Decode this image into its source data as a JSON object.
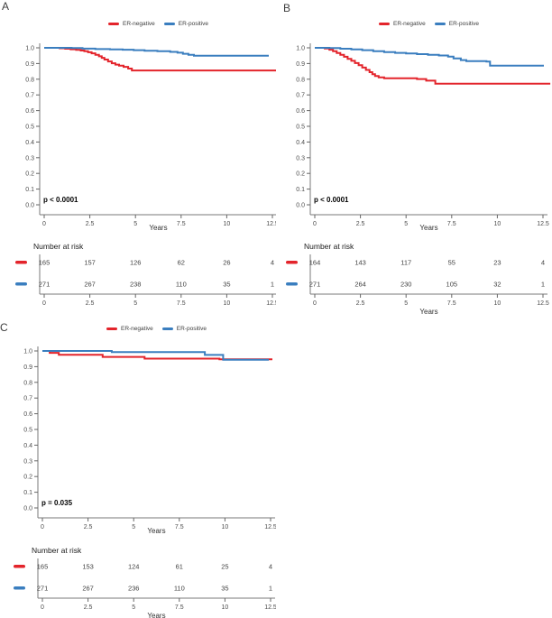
{
  "figure_title": "",
  "colors": {
    "er_negative": "#e3242b",
    "er_positive": "#3a7ebf",
    "axis_line": "#7a7a7a",
    "tick_mark": "#666666",
    "tick_label": "#4d4d4d",
    "risk_number": "#404040",
    "p_value_text": "#000000",
    "background": "#ffffff"
  },
  "strings": {
    "risk_title": "Number at risk",
    "x_axis_label": "Years"
  },
  "legend": [
    {
      "label": "ER-negative",
      "color_key": "er_negative"
    },
    {
      "label": "ER-positive",
      "color_key": "er_positive"
    }
  ],
  "axes": {
    "x_range": [
      0,
      12.5
    ],
    "y_range": [
      0,
      1
    ],
    "x_tick_values": [
      0,
      2.5,
      5,
      7.5,
      10,
      12.5
    ],
    "x_tick_labels": [
      "0",
      "2.5",
      "5",
      "7.5",
      "10",
      "12.5"
    ],
    "y_tick_values": [
      1.0,
      0.9,
      0.8,
      0.7,
      0.6,
      0.5,
      0.4,
      0.3,
      0.2,
      0.1,
      0.0
    ],
    "y_tick_labels": [
      "1.0",
      "0.9",
      "0.8",
      "0.7",
      "0.6",
      "0.5",
      "0.4",
      "0.3",
      "0.2",
      "0.1",
      "0.0"
    ]
  },
  "chart_data": [
    {
      "panel": "A",
      "type": "line",
      "subtype": "kaplan-meier-step",
      "p_value": "p < 0.0001",
      "show_years_under_plot": true,
      "show_years_under_risk": false,
      "series": [
        {
          "name": "ER-negative",
          "color_key": "er_negative",
          "points": [
            [
              0,
              1
            ],
            [
              0.85,
              0.997
            ],
            [
              1.15,
              0.994
            ],
            [
              1.45,
              0.991
            ],
            [
              1.75,
              0.987
            ],
            [
              2.0,
              0.983
            ],
            [
              2.2,
              0.978
            ],
            [
              2.4,
              0.972
            ],
            [
              2.6,
              0.965
            ],
            [
              2.8,
              0.956
            ],
            [
              3.0,
              0.946
            ],
            [
              3.15,
              0.936
            ],
            [
              3.3,
              0.925
            ],
            [
              3.5,
              0.913
            ],
            [
              3.7,
              0.902
            ],
            [
              3.9,
              0.893
            ],
            [
              4.1,
              0.886
            ],
            [
              4.35,
              0.879
            ],
            [
              4.6,
              0.868
            ],
            [
              4.8,
              0.856
            ],
            [
              12.75,
              0.856
            ]
          ]
        },
        {
          "name": "ER-positive",
          "color_key": "er_positive",
          "points": [
            [
              0,
              1
            ],
            [
              1.5,
              0.998
            ],
            [
              2.1,
              0.995
            ],
            [
              2.8,
              0.992
            ],
            [
              3.6,
              0.99
            ],
            [
              4.3,
              0.988
            ],
            [
              4.9,
              0.985
            ],
            [
              5.5,
              0.981
            ],
            [
              6.2,
              0.978
            ],
            [
              6.9,
              0.974
            ],
            [
              7.3,
              0.969
            ],
            [
              7.6,
              0.962
            ],
            [
              7.9,
              0.955
            ],
            [
              8.2,
              0.95
            ],
            [
              12.3,
              0.95
            ]
          ]
        }
      ],
      "number_at_risk": {
        "times": [
          0,
          2.5,
          5,
          7.5,
          10,
          12.5
        ],
        "rows": [
          {
            "name": "ER-negative",
            "color_key": "er_negative",
            "counts": [
              "165",
              "157",
              "126",
              "62",
              "26",
              "4"
            ]
          },
          {
            "name": "ER-positive",
            "color_key": "er_positive",
            "counts": [
              "271",
              "267",
              "238",
              "110",
              "35",
              "1"
            ]
          }
        ]
      }
    },
    {
      "panel": "B",
      "type": "line",
      "subtype": "kaplan-meier-step",
      "p_value": "p < 0.0001",
      "show_years_under_plot": true,
      "show_years_under_risk": true,
      "series": [
        {
          "name": "ER-negative",
          "color_key": "er_negative",
          "points": [
            [
              0,
              1
            ],
            [
              0.55,
              0.996
            ],
            [
              0.8,
              0.988
            ],
            [
              1.0,
              0.978
            ],
            [
              1.2,
              0.967
            ],
            [
              1.4,
              0.955
            ],
            [
              1.6,
              0.943
            ],
            [
              1.8,
              0.93
            ],
            [
              2.0,
              0.917
            ],
            [
              2.2,
              0.903
            ],
            [
              2.4,
              0.889
            ],
            [
              2.6,
              0.874
            ],
            [
              2.8,
              0.859
            ],
            [
              3.0,
              0.845
            ],
            [
              3.15,
              0.832
            ],
            [
              3.3,
              0.82
            ],
            [
              3.5,
              0.812
            ],
            [
              3.8,
              0.806
            ],
            [
              5.6,
              0.801
            ],
            [
              6.1,
              0.791
            ],
            [
              6.6,
              0.772
            ],
            [
              12.9,
              0.772
            ]
          ]
        },
        {
          "name": "ER-positive",
          "color_key": "er_positive",
          "points": [
            [
              0,
              1
            ],
            [
              0.8,
              0.998
            ],
            [
              1.4,
              0.994
            ],
            [
              2.0,
              0.99
            ],
            [
              2.6,
              0.985
            ],
            [
              3.2,
              0.979
            ],
            [
              3.8,
              0.973
            ],
            [
              4.4,
              0.968
            ],
            [
              5.0,
              0.964
            ],
            [
              5.6,
              0.96
            ],
            [
              6.2,
              0.956
            ],
            [
              6.8,
              0.951
            ],
            [
              7.3,
              0.944
            ],
            [
              7.6,
              0.932
            ],
            [
              8.0,
              0.922
            ],
            [
              8.3,
              0.915
            ],
            [
              9.4,
              0.912
            ],
            [
              9.6,
              0.886
            ],
            [
              12.55,
              0.886
            ]
          ]
        }
      ],
      "number_at_risk": {
        "times": [
          0,
          2.5,
          5,
          7.5,
          10,
          12.5
        ],
        "rows": [
          {
            "name": "ER-negative",
            "color_key": "er_negative",
            "counts": [
              "164",
              "143",
              "117",
              "55",
              "23",
              "4"
            ]
          },
          {
            "name": "ER-positive",
            "color_key": "er_positive",
            "counts": [
              "271",
              "264",
              "230",
              "105",
              "32",
              "1"
            ]
          }
        ]
      }
    },
    {
      "panel": "C",
      "type": "line",
      "subtype": "kaplan-meier-step",
      "p_value": "p = 0.035",
      "show_years_under_plot": true,
      "show_years_under_risk": true,
      "series": [
        {
          "name": "ER-negative",
          "color_key": "er_negative",
          "points": [
            [
              0,
              1
            ],
            [
              0.4,
              0.988
            ],
            [
              0.9,
              0.976
            ],
            [
              3.3,
              0.962
            ],
            [
              5.6,
              0.951
            ],
            [
              9.7,
              0.947
            ],
            [
              12.6,
              0.947
            ]
          ]
        },
        {
          "name": "ER-positive",
          "color_key": "er_positive",
          "points": [
            [
              0,
              1
            ],
            [
              3.8,
              0.993
            ],
            [
              8.9,
              0.975
            ],
            [
              9.9,
              0.944
            ],
            [
              12.4,
              0.944
            ]
          ]
        }
      ],
      "number_at_risk": {
        "times": [
          0,
          2.5,
          5,
          7.5,
          10,
          12.5
        ],
        "rows": [
          {
            "name": "ER-negative",
            "color_key": "er_negative",
            "counts": [
              "165",
              "153",
              "124",
              "61",
              "25",
              "4"
            ]
          },
          {
            "name": "ER-positive",
            "color_key": "er_positive",
            "counts": [
              "271",
              "267",
              "236",
              "110",
              "35",
              "1"
            ]
          }
        ]
      }
    }
  ]
}
